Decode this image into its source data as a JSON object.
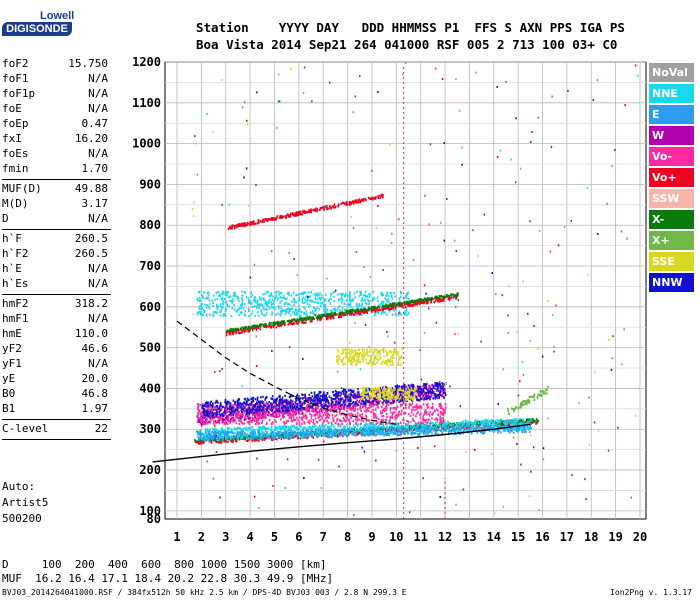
{
  "logo": {
    "line1": "Lowell",
    "line2": "DIGISONDE"
  },
  "header": {
    "line1": "Station    YYYY DAY   DDD HHMMSS P1  FFS S AXN PPS IGA PS",
    "line2": "Boa Vista 2014 Sep21 264 041000 RSF 005 2 713 100 03+ C0"
  },
  "params": [
    {
      "group": 1,
      "name": "foF2",
      "value": "15.750"
    },
    {
      "group": 1,
      "name": "foF1",
      "value": "N/A"
    },
    {
      "group": 1,
      "name": "foF1p",
      "value": "N/A"
    },
    {
      "group": 1,
      "name": "foE",
      "value": "N/A"
    },
    {
      "group": 1,
      "name": "foEp",
      "value": "0.47"
    },
    {
      "group": 1,
      "name": "fxI",
      "value": "16.20"
    },
    {
      "group": 1,
      "name": "foEs",
      "value": "N/A"
    },
    {
      "group": 1,
      "name": "fmin",
      "value": "1.70"
    },
    {
      "group": 2,
      "name": "MUF(D)",
      "value": "49.88"
    },
    {
      "group": 2,
      "name": "M(D)",
      "value": "3.17"
    },
    {
      "group": 2,
      "name": "D",
      "value": "N/A"
    },
    {
      "group": 3,
      "name": "h`F",
      "value": "260.5"
    },
    {
      "group": 3,
      "name": "h`F2",
      "value": "260.5"
    },
    {
      "group": 3,
      "name": "h`E",
      "value": "N/A"
    },
    {
      "group": 3,
      "name": "h`Es",
      "value": "N/A"
    },
    {
      "group": 4,
      "name": "hmF2",
      "value": "318.2"
    },
    {
      "group": 4,
      "name": "hmF1",
      "value": "N/A"
    },
    {
      "group": 4,
      "name": "hmE",
      "value": "110.0"
    },
    {
      "group": 4,
      "name": "yF2",
      "value": "46.6"
    },
    {
      "group": 4,
      "name": "yF1",
      "value": "N/A"
    },
    {
      "group": 4,
      "name": "yE",
      "value": "20.0"
    },
    {
      "group": 4,
      "name": "B0",
      "value": "46.8"
    },
    {
      "group": 4,
      "name": "B1",
      "value": "1.97"
    },
    {
      "group": 5,
      "name": "C-level",
      "value": "22"
    }
  ],
  "notes": [
    "Auto:",
    "Artist5",
    "500200"
  ],
  "bottom": {
    "d_row": "D     100  200  400  600  800 1000 1500 3000 [km]",
    "muf_row": "MUF  16.2 16.4 17.1 18.4 20.2 22.8 30.3 49.9 [MHz]"
  },
  "footer": {
    "left": "BVJ03_2014264041000.RSF / 384fx512h 50 kHz 2.5 km / DPS-4D BVJ03 003 / 2.8 N 299.3 E",
    "right": "Ion2Png v. 1.3.17"
  },
  "legend": [
    {
      "label": "NoVal",
      "color": "#a0a0a0"
    },
    {
      "label": "NNE",
      "color": "#18d8f0"
    },
    {
      "label": "E",
      "color": "#2c9cf0"
    },
    {
      "label": "W",
      "color": "#b000b0"
    },
    {
      "label": "Vo-",
      "color": "#ff2aa0"
    },
    {
      "label": "Vo+",
      "color": "#f00020"
    },
    {
      "label": "SSW",
      "color": "#f8b4a8"
    },
    {
      "label": "X-",
      "color": "#0a7a0a"
    },
    {
      "label": "X+",
      "color": "#70b848"
    },
    {
      "label": "SSE",
      "color": "#d8d820"
    },
    {
      "label": "NNW",
      "color": "#1010d0"
    }
  ],
  "chart_data": {
    "type": "scatter",
    "xlim": [
      1,
      20
    ],
    "ylim": [
      80,
      1200
    ],
    "x_ticks": [
      1,
      2,
      3,
      4,
      5,
      6,
      7,
      8,
      9,
      10,
      11,
      12,
      13,
      14,
      15,
      16,
      17,
      18,
      19,
      20
    ],
    "y_ticks": [
      80,
      100,
      200,
      300,
      400,
      500,
      600,
      700,
      800,
      900,
      1000,
      1100,
      1200
    ],
    "grid": true,
    "legend_placement": "right",
    "profile_curve": [
      [
        0,
        220
      ],
      [
        2,
        233
      ],
      [
        4,
        246
      ],
      [
        6,
        257
      ],
      [
        8,
        267
      ],
      [
        10,
        276
      ],
      [
        12,
        287
      ],
      [
        14,
        300
      ],
      [
        15.5,
        312
      ]
    ],
    "dashed_curve": [
      [
        1,
        565
      ],
      [
        2,
        520
      ],
      [
        3,
        475
      ],
      [
        4,
        437
      ],
      [
        5,
        405
      ],
      [
        6,
        375
      ],
      [
        7,
        352
      ],
      [
        8,
        335
      ],
      [
        9,
        322
      ],
      [
        10,
        312
      ]
    ],
    "traces": [
      {
        "name": "Vo+",
        "color": "#f00020",
        "x0": 1.7,
        "x1": 15.8,
        "y0": 272,
        "y1": 318,
        "spread": 6
      },
      {
        "name": "X-",
        "color": "#0a7a0a",
        "x0": 1.7,
        "x1": 15.8,
        "y0": 276,
        "y1": 325,
        "spread": 4
      },
      {
        "name": "NNE",
        "color": "#18d8f0",
        "x0": 1.8,
        "x1": 15.5,
        "y0": 290,
        "y1": 315,
        "spread": 14
      },
      {
        "name": "E",
        "color": "#2c9cf0",
        "x0": 1.8,
        "x1": 15.5,
        "y0": 285,
        "y1": 305,
        "spread": 10
      },
      {
        "name": "W",
        "color": "#b000b0",
        "x0": 1.8,
        "x1": 12.0,
        "y0": 330,
        "y1": 400,
        "spread": 20
      },
      {
        "name": "Vo-",
        "color": "#ff2aa0",
        "x0": 1.8,
        "x1": 12.0,
        "y0": 340,
        "y1": 340,
        "spread": 25
      },
      {
        "name": "NNW",
        "color": "#1010d0",
        "x0": 2.0,
        "x1": 12.0,
        "y0": 350,
        "y1": 400,
        "spread": 20
      },
      {
        "name": "SSE",
        "color": "#d8d820",
        "x0": 7.5,
        "x1": 10.2,
        "y0": 480,
        "y1": 480,
        "spread": 20
      },
      {
        "name": "SSE",
        "color": "#d8d820",
        "x0": 8.5,
        "x1": 10.8,
        "y0": 390,
        "y1": 390,
        "spread": 15
      },
      {
        "name": "NNE",
        "color": "#18d8f0",
        "x0": 1.8,
        "x1": 10.5,
        "y0": 610,
        "y1": 610,
        "spread": 30
      },
      {
        "name": "Vo+",
        "color": "#f00020",
        "x0": 3.0,
        "x1": 12.5,
        "y0": 538,
        "y1": 628,
        "spread": 5
      },
      {
        "name": "X-",
        "color": "#0a7a0a",
        "x0": 3.0,
        "x1": 12.5,
        "y0": 543,
        "y1": 633,
        "spread": 3
      },
      {
        "name": "Vo+",
        "color": "#f00020",
        "x0": 3.0,
        "x1": 9.5,
        "y0": 795,
        "y1": 875,
        "spread": 4
      },
      {
        "name": "X+",
        "color": "#70b848",
        "x0": 14.5,
        "x1": 16.2,
        "y0": 345,
        "y1": 400,
        "spread": 8
      }
    ]
  }
}
